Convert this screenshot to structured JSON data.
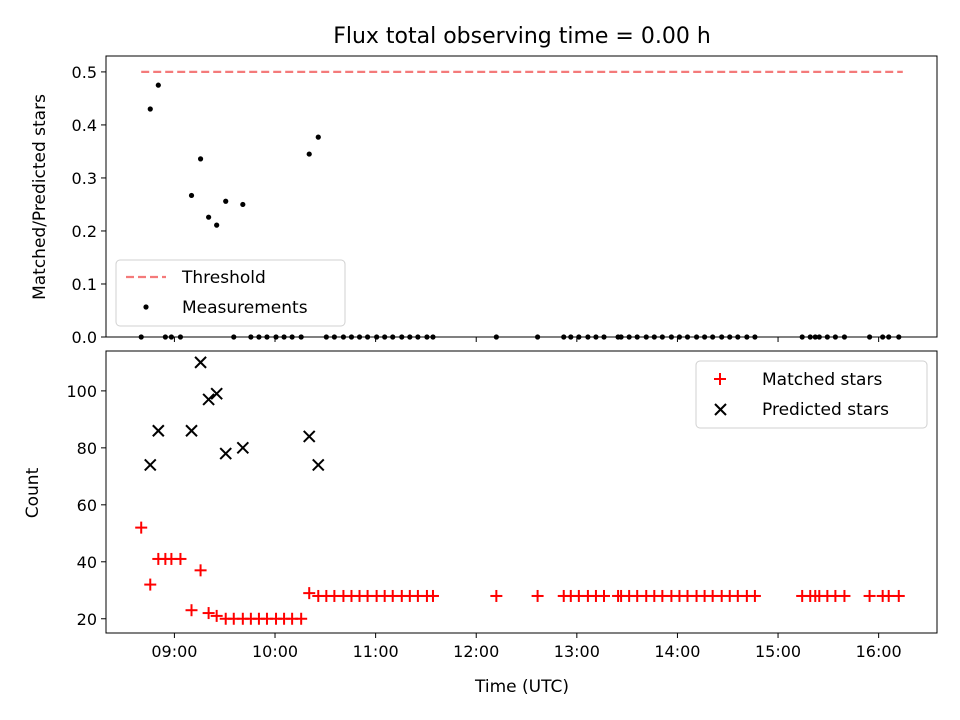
{
  "chart_data": [
    {
      "type": "scatter",
      "title": "Flux total observing time = 0.00 h",
      "ylabel": "Matched/Predicted stars",
      "ylim": [
        0,
        0.53
      ],
      "yticks": [
        "0.0",
        "0.1",
        "0.2",
        "0.3",
        "0.4",
        "0.5"
      ],
      "xlim": [
        8.32,
        16.58
      ],
      "threshold": {
        "name": "Threshold",
        "value": 0.5,
        "x_range": [
          8.67,
          16.24
        ],
        "color": "#f47a7a"
      },
      "series": [
        {
          "name": "Measurements",
          "color": "#000000",
          "x": [
            8.67,
            8.76,
            8.84,
            8.91,
            8.97,
            9.06,
            9.17,
            9.26,
            9.34,
            9.42,
            9.51,
            9.59,
            9.68,
            9.76,
            9.84,
            9.92,
            10.01,
            10.09,
            10.17,
            10.26,
            10.34,
            10.43,
            10.51,
            10.59,
            10.68,
            10.76,
            10.84,
            10.92,
            11.01,
            11.09,
            11.17,
            11.26,
            11.34,
            11.42,
            11.51,
            11.57,
            12.2,
            12.61,
            12.87,
            12.94,
            13.02,
            13.11,
            13.19,
            13.27,
            13.41,
            13.44,
            13.52,
            13.6,
            13.69,
            13.77,
            13.85,
            13.94,
            14.02,
            14.1,
            14.19,
            14.27,
            14.35,
            14.44,
            14.52,
            14.6,
            14.69,
            14.77,
            15.24,
            15.32,
            15.37,
            15.41,
            15.49,
            15.57,
            15.66,
            15.91,
            16.04,
            16.1,
            16.2
          ],
          "y": [
            0,
            0.43,
            0.475,
            0,
            0,
            0,
            0.267,
            0.336,
            0.226,
            0.211,
            0.256,
            0,
            0.25,
            0,
            0,
            0,
            0,
            0,
            0,
            0,
            0.345,
            0.377,
            0,
            0,
            0,
            0,
            0,
            0,
            0,
            0,
            0,
            0,
            0,
            0,
            0,
            0,
            0,
            0,
            0,
            0,
            0,
            0,
            0,
            0,
            0,
            0,
            0,
            0,
            0,
            0,
            0,
            0,
            0,
            0,
            0,
            0,
            0,
            0,
            0,
            0,
            0,
            0,
            0,
            0,
            0,
            0,
            0,
            0,
            0,
            0,
            0,
            0,
            0
          ]
        }
      ],
      "legend": {
        "position": "lower-left",
        "entries": [
          "Threshold",
          "Measurements"
        ]
      }
    },
    {
      "type": "scatter",
      "xlabel": "Time (UTC)",
      "ylabel": "Count",
      "ylim": [
        15,
        114
      ],
      "yticks": [
        "20",
        "40",
        "60",
        "80",
        "100"
      ],
      "xlim": [
        8.32,
        16.58
      ],
      "xticks": [
        "09:00",
        "10:00",
        "11:00",
        "12:00",
        "13:00",
        "14:00",
        "15:00",
        "16:00"
      ],
      "series": [
        {
          "name": "Matched stars",
          "color": "#ff0000",
          "marker": "+",
          "x": [
            8.67,
            8.76,
            8.84,
            8.91,
            8.97,
            9.06,
            9.17,
            9.26,
            9.34,
            9.42,
            9.51,
            9.59,
            9.68,
            9.76,
            9.84,
            9.92,
            10.01,
            10.09,
            10.17,
            10.26,
            10.34,
            10.43,
            10.51,
            10.59,
            10.68,
            10.76,
            10.84,
            10.92,
            11.01,
            11.09,
            11.17,
            11.26,
            11.34,
            11.42,
            11.51,
            11.57,
            12.2,
            12.61,
            12.87,
            12.94,
            13.02,
            13.11,
            13.19,
            13.27,
            13.41,
            13.44,
            13.52,
            13.6,
            13.69,
            13.77,
            13.85,
            13.94,
            14.02,
            14.1,
            14.19,
            14.27,
            14.35,
            14.44,
            14.52,
            14.6,
            14.69,
            14.77,
            15.24,
            15.32,
            15.37,
            15.41,
            15.49,
            15.57,
            15.66,
            15.91,
            16.04,
            16.1,
            16.2
          ],
          "y": [
            52,
            32,
            41,
            41,
            41,
            41,
            23,
            37,
            22,
            21,
            20,
            20,
            20,
            20,
            20,
            20,
            20,
            20,
            20,
            20,
            29,
            28,
            28,
            28,
            28,
            28,
            28,
            28,
            28,
            28,
            28,
            28,
            28,
            28,
            28,
            28,
            28,
            28,
            28,
            28,
            28,
            28,
            28,
            28,
            28,
            28,
            28,
            28,
            28,
            28,
            28,
            28,
            28,
            28,
            28,
            28,
            28,
            28,
            28,
            28,
            28,
            28,
            28,
            28,
            28,
            28,
            28,
            28,
            28,
            28,
            28,
            28,
            28
          ]
        },
        {
          "name": "Predicted stars",
          "color": "#000000",
          "marker": "x",
          "x": [
            8.76,
            8.84,
            9.17,
            9.26,
            9.34,
            9.42,
            9.51,
            9.68,
            10.34,
            10.43
          ],
          "y": [
            74,
            86,
            86,
            110,
            97,
            99,
            78,
            80,
            84,
            74
          ]
        }
      ],
      "legend": {
        "position": "upper-right",
        "entries": [
          "Matched stars",
          "Predicted stars"
        ]
      }
    }
  ]
}
